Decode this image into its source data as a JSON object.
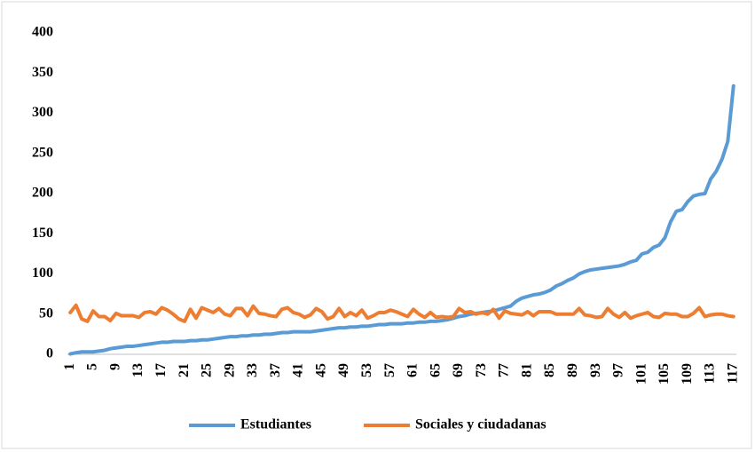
{
  "chart_data": {
    "type": "line",
    "categories": [
      1,
      null,
      null,
      null,
      5,
      null,
      null,
      null,
      9,
      null,
      null,
      null,
      13,
      null,
      null,
      null,
      17,
      null,
      null,
      null,
      21,
      null,
      null,
      null,
      25,
      null,
      null,
      null,
      29,
      null,
      null,
      null,
      33,
      null,
      null,
      null,
      37,
      null,
      null,
      null,
      41,
      null,
      null,
      null,
      45,
      null,
      null,
      null,
      49,
      null,
      null,
      null,
      53,
      null,
      null,
      null,
      57,
      null,
      null,
      null,
      61,
      null,
      null,
      null,
      65,
      null,
      null,
      null,
      69,
      null,
      null,
      null,
      73,
      null,
      null,
      null,
      77,
      null,
      null,
      null,
      81,
      null,
      null,
      null,
      85,
      null,
      null,
      null,
      89,
      null,
      null,
      null,
      93,
      null,
      null,
      null,
      97,
      null,
      null,
      null,
      101,
      null,
      null,
      null,
      105,
      null,
      null,
      null,
      109,
      null,
      null,
      null,
      113,
      null,
      null,
      null,
      117
    ],
    "series": [
      {
        "name": "Estudiantes",
        "color": "#5b9bd5",
        "values": [
          0.5,
          2,
          3,
          3,
          3,
          4,
          5,
          7,
          8,
          9,
          10,
          10,
          11,
          12,
          13,
          14,
          15,
          15,
          16,
          16,
          16,
          17,
          17,
          18,
          18,
          19,
          20,
          21,
          22,
          22,
          23,
          23,
          24,
          24,
          25,
          25,
          26,
          27,
          27,
          28,
          28,
          28,
          28,
          29,
          30,
          31,
          32,
          33,
          33,
          34,
          34,
          35,
          35,
          36,
          37,
          37,
          38,
          38,
          38,
          39,
          39,
          40,
          40,
          41,
          41,
          42,
          43,
          45,
          47,
          48,
          50,
          51,
          52,
          53,
          54,
          56,
          58,
          60,
          66,
          70,
          72,
          74,
          75,
          77,
          80,
          85,
          88,
          92,
          95,
          100,
          103,
          105,
          106,
          107,
          108,
          109,
          110,
          112,
          115,
          117,
          125,
          127,
          133,
          136,
          145,
          165,
          178,
          180,
          190,
          197,
          199,
          200,
          218,
          228,
          243,
          265,
          334
        ]
      },
      {
        "name": "Sociales y ciudadanas",
        "color": "#ed7d31",
        "values": [
          52,
          61,
          44,
          41,
          54,
          47,
          47,
          42,
          51,
          48,
          48,
          48,
          46,
          52,
          53,
          50,
          58,
          55,
          50,
          44,
          41,
          56,
          45,
          58,
          55,
          52,
          57,
          50,
          48,
          57,
          57,
          48,
          60,
          51,
          50,
          48,
          47,
          56,
          58,
          52,
          50,
          46,
          49,
          57,
          53,
          44,
          47,
          57,
          47,
          52,
          48,
          55,
          45,
          48,
          52,
          52,
          55,
          53,
          50,
          47,
          56,
          50,
          46,
          52,
          46,
          47,
          46,
          47,
          57,
          52,
          53,
          50,
          52,
          50,
          56,
          45,
          54,
          51,
          50,
          49,
          53,
          48,
          53,
          53,
          53,
          50,
          50,
          50,
          50,
          57,
          49,
          48,
          46,
          47,
          57,
          50,
          46,
          52,
          45,
          48,
          50,
          52,
          47,
          46,
          51,
          50,
          50,
          47,
          47,
          51,
          58,
          47,
          49,
          50,
          50,
          48,
          47
        ]
      }
    ],
    "ylim": [
      0,
      400
    ],
    "yticks": [
      0,
      50,
      100,
      150,
      200,
      250,
      300,
      350,
      400
    ],
    "grid": false,
    "legend": "bottom"
  }
}
